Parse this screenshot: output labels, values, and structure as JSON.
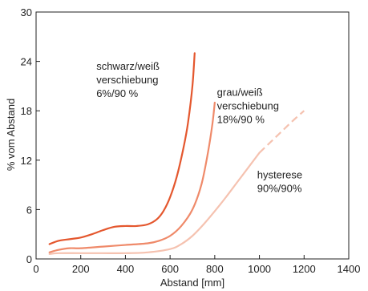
{
  "chart_data": {
    "type": "line",
    "xlabel": "Abstand [mm]",
    "ylabel": "% vom Abstand",
    "xlim": [
      0,
      1400
    ],
    "ylim": [
      0,
      30
    ],
    "x_ticks": [
      0,
      200,
      400,
      600,
      800,
      1000,
      1200,
      1400
    ],
    "y_ticks": [
      0,
      6,
      12,
      18,
      24,
      30
    ],
    "grid": false,
    "series": [
      {
        "color": "#e4572e",
        "points": [
          [
            60,
            1.8
          ],
          [
            100,
            2.2
          ],
          [
            150,
            2.4
          ],
          [
            200,
            2.6
          ],
          [
            250,
            3.0
          ],
          [
            300,
            3.5
          ],
          [
            350,
            3.9
          ],
          [
            400,
            4.0
          ],
          [
            450,
            4.0
          ],
          [
            500,
            4.2
          ],
          [
            540,
            4.8
          ],
          [
            570,
            5.8
          ],
          [
            600,
            7.5
          ],
          [
            630,
            10.0
          ],
          [
            660,
            13.5
          ],
          [
            680,
            16.5
          ],
          [
            700,
            21.0
          ],
          [
            710,
            25.0
          ]
        ]
      },
      {
        "color": "#ef8a6a",
        "points": [
          [
            60,
            0.8
          ],
          [
            100,
            1.1
          ],
          [
            150,
            1.3
          ],
          [
            200,
            1.3
          ],
          [
            300,
            1.5
          ],
          [
            400,
            1.7
          ],
          [
            500,
            1.9
          ],
          [
            550,
            2.2
          ],
          [
            600,
            2.8
          ],
          [
            650,
            4.0
          ],
          [
            700,
            6.0
          ],
          [
            740,
            9.0
          ],
          [
            770,
            13.0
          ],
          [
            790,
            16.5
          ],
          [
            800,
            19.0
          ]
        ]
      },
      {
        "color": "#f5c2b0",
        "points": [
          [
            60,
            0.6
          ],
          [
            100,
            0.7
          ],
          [
            200,
            0.7
          ],
          [
            300,
            0.7
          ],
          [
            400,
            0.7
          ],
          [
            500,
            0.8
          ],
          [
            600,
            1.2
          ],
          [
            650,
            1.8
          ],
          [
            700,
            2.8
          ],
          [
            750,
            4.2
          ],
          [
            800,
            5.8
          ],
          [
            850,
            7.5
          ],
          [
            900,
            9.3
          ],
          [
            950,
            11.1
          ],
          [
            1000,
            12.9
          ]
        ],
        "dashed_points": [
          [
            1000,
            12.9
          ],
          [
            1050,
            14.2
          ],
          [
            1100,
            15.5
          ],
          [
            1150,
            16.8
          ],
          [
            1200,
            18.0
          ]
        ]
      }
    ],
    "annotations": [
      {
        "lines": [
          "schwarz/weiß",
          "verschiebung",
          "6%/90 %"
        ],
        "x": 270,
        "y": 23.0
      },
      {
        "lines": [
          "grau/weiß",
          "verschiebung",
          "18%/90 %"
        ],
        "x": 810,
        "y": 19.8
      },
      {
        "lines": [
          "hysterese",
          "90%/90%"
        ],
        "x": 990,
        "y": 9.8
      }
    ]
  }
}
